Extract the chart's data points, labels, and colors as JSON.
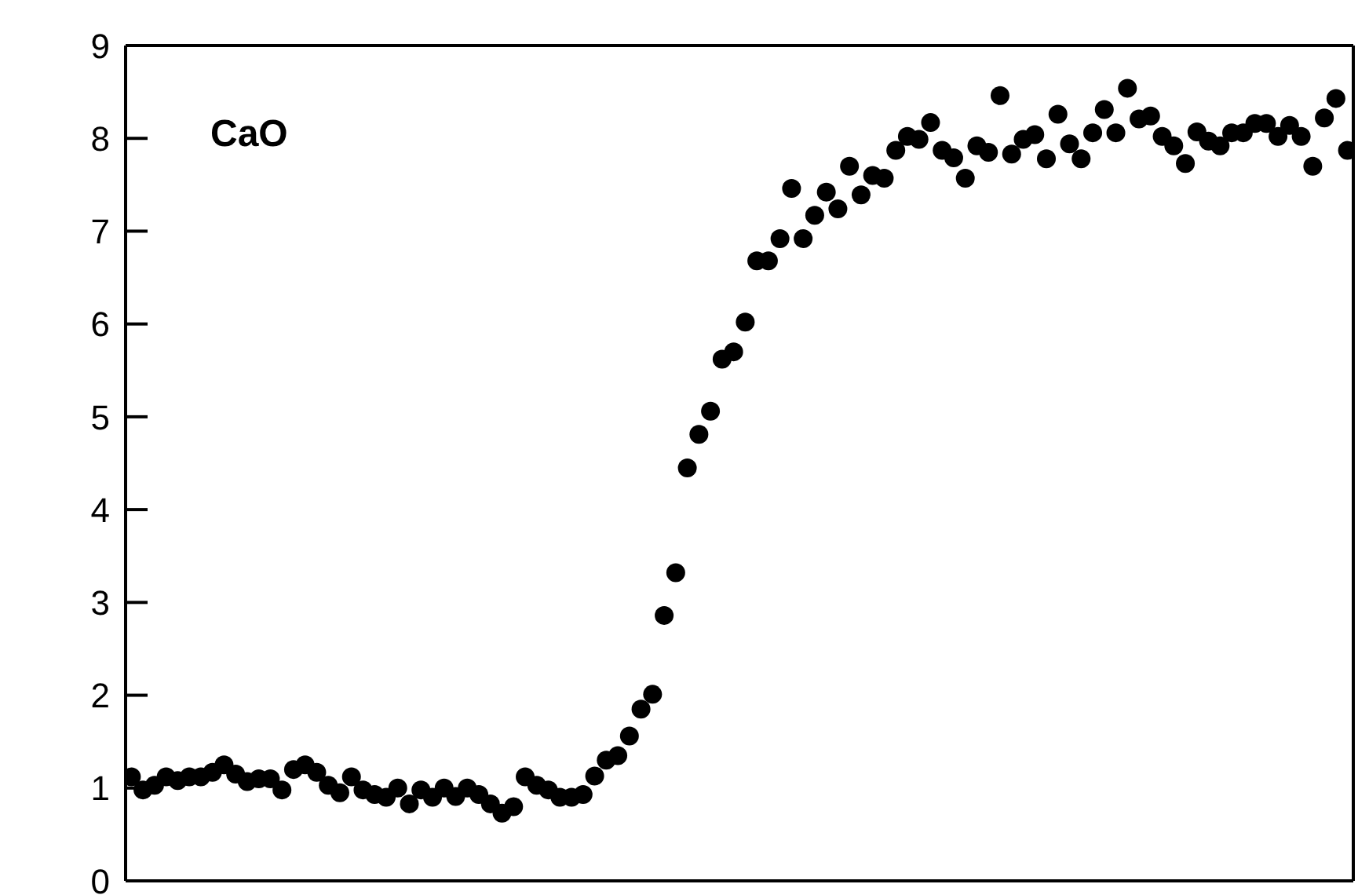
{
  "chart_data": {
    "type": "scatter",
    "title": "CaO",
    "marker": "circle",
    "categories": [
      null,
      null,
      null,
      null,
      null,
      null,
      null,
      null,
      null,
      null,
      null,
      null,
      null,
      null,
      null,
      null,
      null,
      null,
      null,
      null,
      null,
      null,
      null,
      null,
      null,
      null,
      null,
      null,
      null,
      null,
      null,
      null,
      null,
      null,
      null,
      null,
      null,
      null,
      null,
      null,
      null,
      null,
      null,
      null,
      null,
      null,
      null,
      null,
      null,
      null,
      null,
      null,
      null,
      null,
      null,
      null,
      null,
      null,
      null,
      null,
      null,
      null,
      null,
      null,
      null,
      null,
      null,
      null,
      null,
      null,
      null,
      null,
      null,
      null,
      null,
      null,
      null,
      null,
      null,
      null,
      null,
      null,
      null,
      null,
      null,
      null,
      null,
      null,
      null,
      null,
      null,
      null,
      null,
      null,
      null,
      null,
      null,
      null,
      null,
      null,
      null,
      null,
      null,
      null,
      null,
      null
    ],
    "ylim": [
      0,
      9
    ],
    "yticks": [
      0,
      1,
      2,
      3,
      4,
      5,
      6,
      7,
      8,
      9
    ],
    "series": [
      {
        "color": "#000000",
        "values": [
          1.12,
          0.98,
          1.03,
          1.12,
          1.08,
          1.12,
          1.12,
          1.17,
          1.25,
          1.15,
          1.07,
          1.1,
          1.1,
          0.98,
          1.2,
          1.25,
          1.17,
          1.03,
          0.95,
          1.12,
          0.98,
          0.93,
          0.9,
          1.0,
          0.83,
          0.98,
          0.9,
          1.0,
          0.91,
          1.0,
          0.93,
          0.83,
          0.73,
          0.8,
          1.12,
          1.03,
          0.98,
          0.9,
          0.9,
          0.93,
          1.13,
          1.3,
          1.35,
          1.56,
          1.85,
          2.01,
          2.86,
          3.32,
          4.45,
          4.81,
          5.06,
          5.62,
          5.7,
          6.02,
          6.68,
          6.68,
          6.92,
          7.46,
          6.92,
          7.17,
          7.42,
          7.24,
          7.7,
          7.39,
          7.6,
          7.57,
          7.87,
          8.02,
          7.99,
          8.17,
          7.87,
          7.79,
          7.57,
          7.92,
          7.85,
          8.46,
          7.83,
          7.99,
          8.04,
          7.78,
          8.26,
          7.94,
          7.78,
          8.06,
          8.31,
          8.06,
          8.54,
          8.21,
          8.24,
          8.02,
          7.92,
          7.73,
          8.07,
          7.97,
          7.92,
          8.06,
          8.06,
          8.16,
          8.16,
          8.02,
          8.14,
          8.02,
          7.7,
          8.22,
          8.43,
          7.87
        ]
      }
    ]
  }
}
